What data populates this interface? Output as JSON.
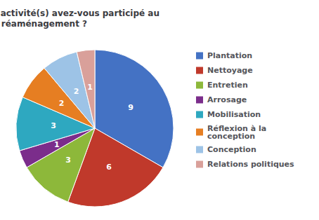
{
  "chart_data": {
    "type": "pie",
    "title": "Dans quelle(s) activité(s) avez-vous participé au\nréaménagement ?",
    "categories": [
      "Plantation",
      "Nettoyage",
      "Entretien",
      "Arrosage",
      "Mobilisation",
      "Réflexion à la\nconception",
      "Conception",
      "Relations politiques"
    ],
    "values": [
      9,
      6,
      3,
      1,
      3,
      2,
      2,
      1
    ],
    "colors": [
      "#4472C4",
      "#C0392B",
      "#8DB83A",
      "#7B2D8B",
      "#2EA8C0",
      "#E67E22",
      "#9DC3E6",
      "#D9A09A"
    ],
    "data_labels": true,
    "legend": "right"
  }
}
